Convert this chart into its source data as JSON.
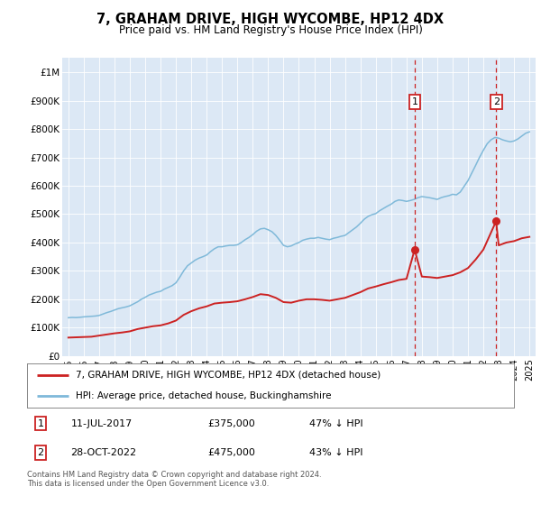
{
  "title": "7, GRAHAM DRIVE, HIGH WYCOMBE, HP12 4DX",
  "subtitle": "Price paid vs. HM Land Registry's House Price Index (HPI)",
  "legend_line1": "7, GRAHAM DRIVE, HIGH WYCOMBE, HP12 4DX (detached house)",
  "legend_line2": "HPI: Average price, detached house, Buckinghamshire",
  "annotation1_label": "1",
  "annotation1_date": "11-JUL-2017",
  "annotation1_price": "£375,000",
  "annotation1_hpi": "47% ↓ HPI",
  "annotation2_label": "2",
  "annotation2_date": "28-OCT-2022",
  "annotation2_price": "£475,000",
  "annotation2_hpi": "43% ↓ HPI",
  "footer": "Contains HM Land Registry data © Crown copyright and database right 2024.\nThis data is licensed under the Open Government Licence v3.0.",
  "hpi_color": "#7fb9d9",
  "price_color": "#cc2222",
  "vline_color": "#cc2222",
  "background_color": "#dce8f5",
  "ylim_min": 0,
  "ylim_max": 1050000,
  "yticks": [
    0,
    100000,
    200000,
    300000,
    400000,
    500000,
    600000,
    700000,
    800000,
    900000,
    1000000
  ],
  "ytick_labels": [
    "£0",
    "£100K",
    "£200K",
    "£300K",
    "£400K",
    "£500K",
    "£600K",
    "£700K",
    "£800K",
    "£900K",
    "£1M"
  ],
  "sale1_year": 2017.53,
  "sale2_year": 2022.83,
  "sale1_price": 375000,
  "sale2_price": 475000,
  "hpi_data": [
    [
      1995.0,
      135000
    ],
    [
      1995.25,
      136000
    ],
    [
      1995.5,
      135500
    ],
    [
      1995.75,
      136500
    ],
    [
      1996.0,
      138000
    ],
    [
      1996.25,
      139000
    ],
    [
      1996.5,
      140000
    ],
    [
      1996.75,
      141000
    ],
    [
      1997.0,
      143000
    ],
    [
      1997.25,
      148000
    ],
    [
      1997.5,
      153000
    ],
    [
      1997.75,
      157000
    ],
    [
      1998.0,
      162000
    ],
    [
      1998.25,
      167000
    ],
    [
      1998.5,
      170000
    ],
    [
      1998.75,
      173000
    ],
    [
      1999.0,
      177000
    ],
    [
      1999.25,
      184000
    ],
    [
      1999.5,
      191000
    ],
    [
      1999.75,
      200000
    ],
    [
      2000.0,
      207000
    ],
    [
      2000.25,
      215000
    ],
    [
      2000.5,
      220000
    ],
    [
      2000.75,
      225000
    ],
    [
      2001.0,
      228000
    ],
    [
      2001.25,
      236000
    ],
    [
      2001.5,
      242000
    ],
    [
      2001.75,
      248000
    ],
    [
      2002.0,
      258000
    ],
    [
      2002.25,
      278000
    ],
    [
      2002.5,
      300000
    ],
    [
      2002.75,
      318000
    ],
    [
      2003.0,
      328000
    ],
    [
      2003.25,
      338000
    ],
    [
      2003.5,
      345000
    ],
    [
      2003.75,
      350000
    ],
    [
      2004.0,
      356000
    ],
    [
      2004.25,
      368000
    ],
    [
      2004.5,
      378000
    ],
    [
      2004.75,
      385000
    ],
    [
      2005.0,
      385000
    ],
    [
      2005.25,
      388000
    ],
    [
      2005.5,
      390000
    ],
    [
      2005.75,
      390000
    ],
    [
      2006.0,
      392000
    ],
    [
      2006.25,
      400000
    ],
    [
      2006.5,
      410000
    ],
    [
      2006.75,
      418000
    ],
    [
      2007.0,
      428000
    ],
    [
      2007.25,
      440000
    ],
    [
      2007.5,
      448000
    ],
    [
      2007.75,
      450000
    ],
    [
      2008.0,
      445000
    ],
    [
      2008.25,
      438000
    ],
    [
      2008.5,
      425000
    ],
    [
      2008.75,
      408000
    ],
    [
      2009.0,
      390000
    ],
    [
      2009.25,
      385000
    ],
    [
      2009.5,
      388000
    ],
    [
      2009.75,
      395000
    ],
    [
      2010.0,
      400000
    ],
    [
      2010.25,
      408000
    ],
    [
      2010.5,
      412000
    ],
    [
      2010.75,
      415000
    ],
    [
      2011.0,
      415000
    ],
    [
      2011.25,
      418000
    ],
    [
      2011.5,
      415000
    ],
    [
      2011.75,
      412000
    ],
    [
      2012.0,
      410000
    ],
    [
      2012.25,
      415000
    ],
    [
      2012.5,
      418000
    ],
    [
      2012.75,
      422000
    ],
    [
      2013.0,
      425000
    ],
    [
      2013.25,
      435000
    ],
    [
      2013.5,
      445000
    ],
    [
      2013.75,
      455000
    ],
    [
      2014.0,
      468000
    ],
    [
      2014.25,
      482000
    ],
    [
      2014.5,
      492000
    ],
    [
      2014.75,
      498000
    ],
    [
      2015.0,
      502000
    ],
    [
      2015.25,
      512000
    ],
    [
      2015.5,
      520000
    ],
    [
      2015.75,
      528000
    ],
    [
      2016.0,
      535000
    ],
    [
      2016.25,
      545000
    ],
    [
      2016.5,
      550000
    ],
    [
      2016.75,
      548000
    ],
    [
      2017.0,
      545000
    ],
    [
      2017.25,
      548000
    ],
    [
      2017.5,
      552000
    ],
    [
      2017.75,
      558000
    ],
    [
      2018.0,
      562000
    ],
    [
      2018.25,
      560000
    ],
    [
      2018.5,
      558000
    ],
    [
      2018.75,
      555000
    ],
    [
      2019.0,
      552000
    ],
    [
      2019.25,
      558000
    ],
    [
      2019.5,
      562000
    ],
    [
      2019.75,
      565000
    ],
    [
      2020.0,
      570000
    ],
    [
      2020.25,
      568000
    ],
    [
      2020.5,
      578000
    ],
    [
      2020.75,
      598000
    ],
    [
      2021.0,
      618000
    ],
    [
      2021.25,
      645000
    ],
    [
      2021.5,
      672000
    ],
    [
      2021.75,
      700000
    ],
    [
      2022.0,
      725000
    ],
    [
      2022.25,
      748000
    ],
    [
      2022.5,
      762000
    ],
    [
      2022.75,
      770000
    ],
    [
      2023.0,
      768000
    ],
    [
      2023.25,
      762000
    ],
    [
      2023.5,
      758000
    ],
    [
      2023.75,
      755000
    ],
    [
      2024.0,
      758000
    ],
    [
      2024.25,
      765000
    ],
    [
      2024.5,
      775000
    ],
    [
      2024.75,
      785000
    ],
    [
      2025.0,
      790000
    ]
  ],
  "price_data": [
    [
      1995.0,
      65000
    ],
    [
      1995.5,
      66000
    ],
    [
      1996.0,
      67000
    ],
    [
      1996.5,
      68000
    ],
    [
      1997.0,
      72000
    ],
    [
      1997.5,
      76000
    ],
    [
      1998.0,
      80000
    ],
    [
      1998.5,
      83000
    ],
    [
      1999.0,
      87000
    ],
    [
      1999.5,
      95000
    ],
    [
      2000.0,
      100000
    ],
    [
      2000.5,
      105000
    ],
    [
      2001.0,
      108000
    ],
    [
      2001.5,
      115000
    ],
    [
      2002.0,
      125000
    ],
    [
      2002.5,
      145000
    ],
    [
      2003.0,
      158000
    ],
    [
      2003.5,
      168000
    ],
    [
      2004.0,
      175000
    ],
    [
      2004.5,
      185000
    ],
    [
      2005.0,
      188000
    ],
    [
      2005.5,
      190000
    ],
    [
      2006.0,
      193000
    ],
    [
      2006.5,
      200000
    ],
    [
      2007.0,
      208000
    ],
    [
      2007.5,
      218000
    ],
    [
      2008.0,
      215000
    ],
    [
      2008.5,
      205000
    ],
    [
      2009.0,
      190000
    ],
    [
      2009.5,
      188000
    ],
    [
      2010.0,
      195000
    ],
    [
      2010.5,
      200000
    ],
    [
      2011.0,
      200000
    ],
    [
      2011.5,
      198000
    ],
    [
      2012.0,
      195000
    ],
    [
      2012.5,
      200000
    ],
    [
      2013.0,
      205000
    ],
    [
      2013.5,
      215000
    ],
    [
      2014.0,
      225000
    ],
    [
      2014.5,
      238000
    ],
    [
      2015.0,
      245000
    ],
    [
      2015.5,
      253000
    ],
    [
      2016.0,
      260000
    ],
    [
      2016.5,
      268000
    ],
    [
      2017.0,
      272000
    ],
    [
      2017.53,
      375000
    ],
    [
      2018.0,
      280000
    ],
    [
      2018.5,
      278000
    ],
    [
      2019.0,
      275000
    ],
    [
      2019.5,
      280000
    ],
    [
      2020.0,
      285000
    ],
    [
      2020.5,
      295000
    ],
    [
      2021.0,
      310000
    ],
    [
      2021.5,
      340000
    ],
    [
      2022.0,
      375000
    ],
    [
      2022.83,
      475000
    ],
    [
      2023.0,
      390000
    ],
    [
      2023.5,
      400000
    ],
    [
      2024.0,
      405000
    ],
    [
      2024.5,
      415000
    ],
    [
      2025.0,
      420000
    ]
  ]
}
